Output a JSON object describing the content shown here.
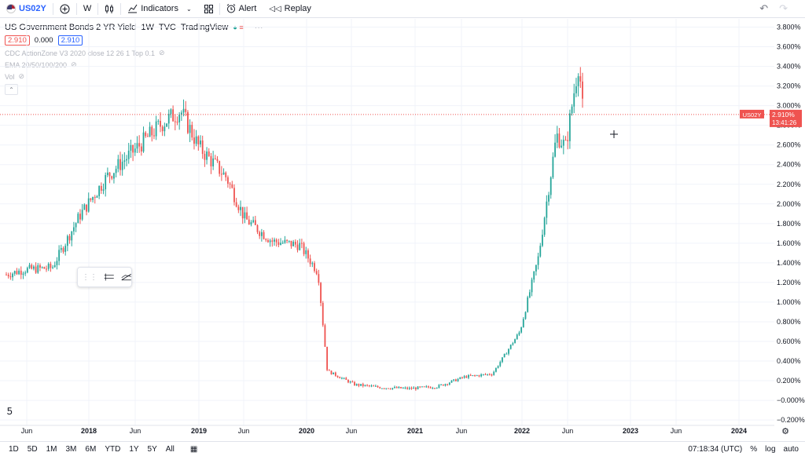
{
  "toolbar": {
    "symbol": "US02Y",
    "interval": "W",
    "indicators_label": "Indicators",
    "alert_label": "Alert",
    "replay_label": "Replay"
  },
  "legend": {
    "title": "US Government Bonds 2 YR Yield",
    "interval": "1W",
    "exchange": "TVC",
    "source": "TradingView",
    "sell": "2.910",
    "spread": "0.000",
    "buy": "2.910",
    "indicators": [
      "CDC ActionZone V3 2020 close 12 26 1 Top 0.1",
      "EMA 20/50/100/200",
      "Vol"
    ]
  },
  "price_label": {
    "symbol": "US02Y",
    "value": "2.910%",
    "countdown": "13:41:26"
  },
  "colors": {
    "up": "#26a69a",
    "down": "#ef5350",
    "accent": "#2962ff"
  },
  "chart_data": {
    "type": "candlestick",
    "y_unit": "%",
    "ylim": [
      -0.1,
      3.9
    ],
    "last_price": 2.91,
    "y_ticks": [
      "3.800%",
      "3.600%",
      "3.400%",
      "3.200%",
      "3.000%",
      "2.800%",
      "2.600%",
      "2.400%",
      "2.200%",
      "2.000%",
      "1.800%",
      "1.600%",
      "1.400%",
      "1.200%",
      "1.000%",
      "0.800%",
      "0.600%",
      "0.400%",
      "0.200%",
      "−0.000%",
      "−0.200%"
    ],
    "x_ticks": [
      "Jun",
      "2018",
      "Jun",
      "2019",
      "Jun",
      "2020",
      "Jun",
      "2021",
      "Jun",
      "2022",
      "Jun",
      "2023",
      "Jun",
      "2024"
    ],
    "price_series": [
      {
        "t": "2017-04",
        "v": 1.28
      },
      {
        "t": "2017-06",
        "v": 1.33
      },
      {
        "t": "2017-09",
        "v": 1.35
      },
      {
        "t": "2017-12",
        "v": 1.88
      },
      {
        "t": "2018-03",
        "v": 2.28
      },
      {
        "t": "2018-06",
        "v": 2.55
      },
      {
        "t": "2018-09",
        "v": 2.82
      },
      {
        "t": "2018-11",
        "v": 2.95
      },
      {
        "t": "2019-01",
        "v": 2.58
      },
      {
        "t": "2019-04",
        "v": 2.27
      },
      {
        "t": "2019-06",
        "v": 1.85
      },
      {
        "t": "2019-09",
        "v": 1.62
      },
      {
        "t": "2019-12",
        "v": 1.58
      },
      {
        "t": "2020-02",
        "v": 1.3
      },
      {
        "t": "2020-03",
        "v": 0.3
      },
      {
        "t": "2020-06",
        "v": 0.16
      },
      {
        "t": "2020-09",
        "v": 0.13
      },
      {
        "t": "2020-12",
        "v": 0.12
      },
      {
        "t": "2021-03",
        "v": 0.14
      },
      {
        "t": "2021-06",
        "v": 0.24
      },
      {
        "t": "2021-09",
        "v": 0.27
      },
      {
        "t": "2021-12",
        "v": 0.7
      },
      {
        "t": "2022-02",
        "v": 1.45
      },
      {
        "t": "2022-04",
        "v": 2.7
      },
      {
        "t": "2022-05",
        "v": 2.58
      },
      {
        "t": "2022-06",
        "v": 3.2
      },
      {
        "t": "2022-06-14",
        "v": 3.45
      },
      {
        "t": "2022-06-28",
        "v": 2.91
      }
    ]
  },
  "bottombar": {
    "ranges": [
      "1D",
      "5D",
      "1M",
      "3M",
      "6M",
      "YTD",
      "1Y",
      "5Y",
      "All"
    ],
    "time": "07:18:34 (UTC)",
    "percent": "%",
    "log": "log",
    "auto": "auto"
  }
}
